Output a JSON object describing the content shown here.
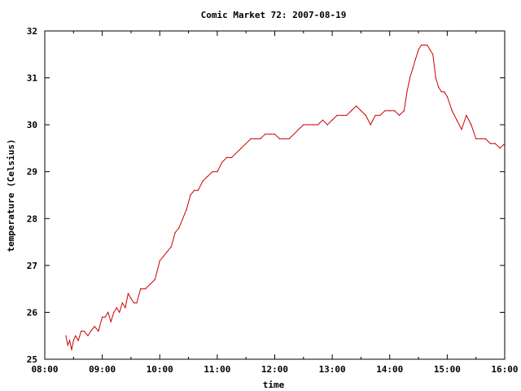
{
  "chart_data": {
    "type": "line",
    "title": "Comic Market 72: 2007-08-19",
    "xlabel": "time",
    "ylabel": "temperature (Celsius)",
    "xlim": [
      "08:00",
      "16:00"
    ],
    "ylim": [
      25,
      32
    ],
    "x_ticks": [
      "08:00",
      "09:00",
      "10:00",
      "11:00",
      "12:00",
      "13:00",
      "14:00",
      "15:00",
      "16:00"
    ],
    "y_ticks": [
      "25",
      "26",
      "27",
      "28",
      "29",
      "30",
      "31",
      "32"
    ],
    "grid": false,
    "legend": "none",
    "series": [
      {
        "color": "#cc0000",
        "x": [
          "08:22",
          "08:24",
          "08:26",
          "08:28",
          "08:30",
          "08:32",
          "08:35",
          "08:38",
          "08:41",
          "08:45",
          "08:48",
          "08:52",
          "08:56",
          "09:00",
          "09:03",
          "09:06",
          "09:09",
          "09:12",
          "09:15",
          "09:18",
          "09:21",
          "09:24",
          "09:27",
          "09:30",
          "09:33",
          "09:36",
          "09:40",
          "09:45",
          "09:50",
          "09:55",
          "10:00",
          "10:04",
          "10:08",
          "10:12",
          "10:16",
          "10:20",
          "10:24",
          "10:28",
          "10:32",
          "10:36",
          "10:40",
          "10:45",
          "10:50",
          "10:55",
          "11:00",
          "11:05",
          "11:10",
          "11:15",
          "11:20",
          "11:25",
          "11:30",
          "11:35",
          "11:40",
          "11:45",
          "11:50",
          "11:55",
          "12:00",
          "12:05",
          "12:10",
          "12:15",
          "12:20",
          "12:25",
          "12:30",
          "12:35",
          "12:40",
          "12:45",
          "12:50",
          "12:55",
          "13:00",
          "13:05",
          "13:10",
          "13:15",
          "13:20",
          "13:25",
          "13:30",
          "13:35",
          "13:40",
          "13:45",
          "13:50",
          "13:55",
          "14:00",
          "14:05",
          "14:10",
          "14:15",
          "14:18",
          "14:21",
          "14:24",
          "14:27",
          "14:30",
          "14:33",
          "14:36",
          "14:39",
          "14:42",
          "14:45",
          "14:48",
          "14:51",
          "14:54",
          "14:57",
          "15:00",
          "15:05",
          "15:10",
          "15:15",
          "15:20",
          "15:25",
          "15:30",
          "15:35",
          "15:40",
          "15:45",
          "15:50",
          "15:55",
          "16:00"
        ],
        "values": [
          25.5,
          25.3,
          25.4,
          25.2,
          25.4,
          25.5,
          25.4,
          25.6,
          25.6,
          25.5,
          25.6,
          25.7,
          25.6,
          25.9,
          25.9,
          26.0,
          25.8,
          26.0,
          26.1,
          26.0,
          26.2,
          26.1,
          26.4,
          26.3,
          26.2,
          26.2,
          26.5,
          26.5,
          26.6,
          26.7,
          27.1,
          27.2,
          27.3,
          27.4,
          27.7,
          27.8,
          28.0,
          28.2,
          28.5,
          28.6,
          28.6,
          28.8,
          28.9,
          29.0,
          29.0,
          29.2,
          29.3,
          29.3,
          29.4,
          29.5,
          29.6,
          29.7,
          29.7,
          29.7,
          29.8,
          29.8,
          29.8,
          29.7,
          29.7,
          29.7,
          29.8,
          29.9,
          30.0,
          30.0,
          30.0,
          30.0,
          30.1,
          30.0,
          30.1,
          30.2,
          30.2,
          30.2,
          30.3,
          30.4,
          30.3,
          30.2,
          30.0,
          30.2,
          30.2,
          30.3,
          30.3,
          30.3,
          30.2,
          30.3,
          30.7,
          31.0,
          31.2,
          31.4,
          31.6,
          31.7,
          31.7,
          31.7,
          31.6,
          31.5,
          31.0,
          30.8,
          30.7,
          30.7,
          30.6,
          30.3,
          30.1,
          29.9,
          30.2,
          30.0,
          29.7,
          29.7,
          29.7,
          29.6,
          29.6,
          29.5,
          29.6
        ]
      }
    ]
  }
}
